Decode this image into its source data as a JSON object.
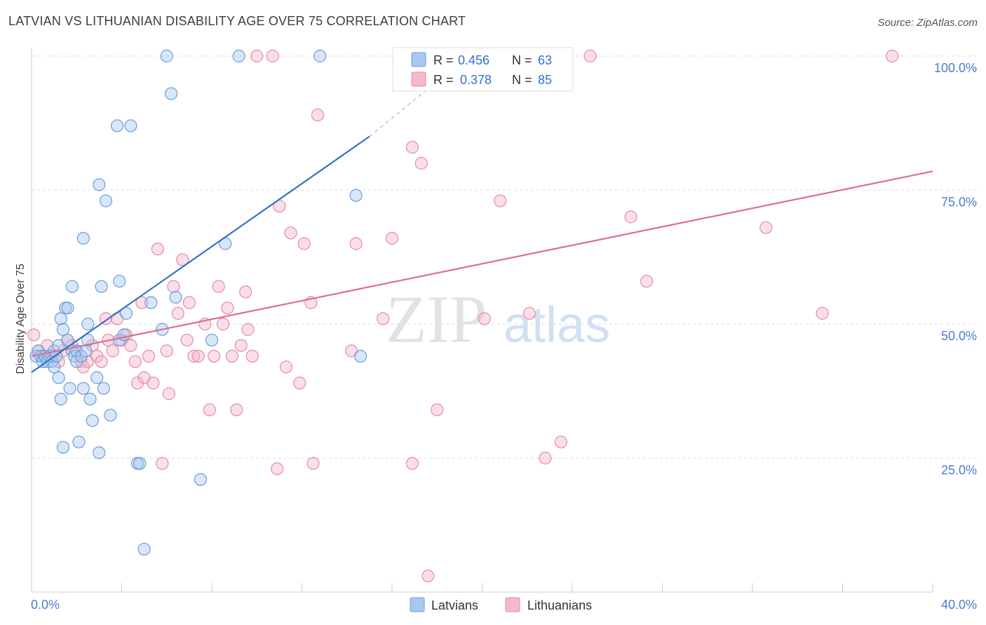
{
  "header": {
    "title": "LATVIAN VS LITHUANIAN DISABILITY AGE OVER 75 CORRELATION CHART",
    "source": "Source: ZipAtlas.com"
  },
  "watermark": {
    "zip": "ZIP",
    "atlas": "atlas"
  },
  "legend_stats": {
    "latvians": {
      "r_label": "R =",
      "r_value": "0.456",
      "n_label": "N =",
      "n_value": "63"
    },
    "lithuanians": {
      "r_label": "R =",
      "r_value": "0.378",
      "n_label": "N =",
      "n_value": "85"
    }
  },
  "colors": {
    "latvians_fill": "#a8c8f0",
    "latvians_stroke": "#6a9fd8",
    "latvians_line": "#2f72c8",
    "lithuanians_fill": "#f5b8cc",
    "lithuanians_stroke": "#e58aa8",
    "lithuanians_line": "#e06c98",
    "axis_text": "#4a7cc9",
    "grid": "#dddddd"
  },
  "chart_data": {
    "type": "scatter",
    "title": "LATVIAN VS LITHUANIAN DISABILITY AGE OVER 75 CORRELATION CHART",
    "xlabel": "",
    "ylabel": "Disability Age Over 75",
    "xlim": [
      0,
      40
    ],
    "ylim": [
      0,
      100
    ],
    "x_ticks": [
      "0.0%",
      "40.0%"
    ],
    "y_ticks": [
      "25.0%",
      "50.0%",
      "75.0%",
      "100.0%"
    ],
    "y_tick_values": [
      25,
      50,
      75,
      100
    ],
    "grid": true,
    "legend": [
      "Latvians",
      "Lithuanians"
    ],
    "legend_position": "bottom-center",
    "series": [
      {
        "name": "Latvians",
        "r": 0.456,
        "n": 63,
        "trend": {
          "x": [
            0,
            15
          ],
          "y": [
            41,
            85
          ],
          "dashed_to": [
            18.5,
            97
          ]
        },
        "points": [
          [
            0.2,
            44
          ],
          [
            0.3,
            45
          ],
          [
            0.4,
            44
          ],
          [
            0.5,
            43
          ],
          [
            0.6,
            44
          ],
          [
            0.7,
            43
          ],
          [
            0.8,
            44
          ],
          [
            0.9,
            43
          ],
          [
            1.0,
            45
          ],
          [
            1.0,
            42
          ],
          [
            1.1,
            44
          ],
          [
            1.2,
            46
          ],
          [
            1.2,
            40
          ],
          [
            1.3,
            51
          ],
          [
            1.3,
            36
          ],
          [
            1.4,
            27
          ],
          [
            1.4,
            49
          ],
          [
            1.5,
            53
          ],
          [
            1.6,
            47
          ],
          [
            1.6,
            53
          ],
          [
            1.7,
            38
          ],
          [
            1.8,
            45
          ],
          [
            1.8,
            57
          ],
          [
            1.9,
            44
          ],
          [
            2.0,
            45
          ],
          [
            2.0,
            43
          ],
          [
            2.1,
            28
          ],
          [
            2.2,
            44
          ],
          [
            2.3,
            38
          ],
          [
            2.3,
            66
          ],
          [
            2.4,
            45
          ],
          [
            2.5,
            47
          ],
          [
            2.5,
            50
          ],
          [
            2.6,
            36
          ],
          [
            2.7,
            32
          ],
          [
            2.9,
            40
          ],
          [
            3.0,
            76
          ],
          [
            3.0,
            26
          ],
          [
            3.1,
            57
          ],
          [
            3.2,
            38
          ],
          [
            3.3,
            73
          ],
          [
            3.5,
            33
          ],
          [
            3.8,
            87
          ],
          [
            3.9,
            47
          ],
          [
            3.9,
            58
          ],
          [
            4.1,
            48
          ],
          [
            4.2,
            52
          ],
          [
            4.4,
            87
          ],
          [
            4.7,
            24
          ],
          [
            4.8,
            24
          ],
          [
            5.0,
            8
          ],
          [
            5.3,
            54
          ],
          [
            5.8,
            49
          ],
          [
            6.0,
            100
          ],
          [
            6.2,
            93
          ],
          [
            6.4,
            55
          ],
          [
            7.5,
            21
          ],
          [
            8.0,
            47
          ],
          [
            8.6,
            65
          ],
          [
            9.2,
            100
          ],
          [
            12.8,
            100
          ],
          [
            14.4,
            74
          ],
          [
            14.6,
            44
          ]
        ]
      },
      {
        "name": "Lithuanians",
        "r": 0.378,
        "n": 85,
        "trend": {
          "x": [
            0,
            40
          ],
          "y": [
            44,
            78.5
          ]
        },
        "points": [
          [
            0.1,
            48
          ],
          [
            0.3,
            45
          ],
          [
            0.5,
            44
          ],
          [
            0.7,
            46
          ],
          [
            0.9,
            44
          ],
          [
            1.1,
            44
          ],
          [
            1.2,
            43
          ],
          [
            1.4,
            45
          ],
          [
            1.6,
            47
          ],
          [
            1.8,
            46
          ],
          [
            2.0,
            45
          ],
          [
            2.2,
            43
          ],
          [
            2.3,
            42
          ],
          [
            2.5,
            43
          ],
          [
            2.7,
            46
          ],
          [
            2.9,
            44
          ],
          [
            3.1,
            43
          ],
          [
            3.3,
            51
          ],
          [
            3.4,
            47
          ],
          [
            3.6,
            45
          ],
          [
            3.8,
            51
          ],
          [
            4.0,
            47
          ],
          [
            4.2,
            48
          ],
          [
            4.4,
            46
          ],
          [
            4.6,
            43
          ],
          [
            4.7,
            39
          ],
          [
            4.9,
            54
          ],
          [
            5.0,
            40
          ],
          [
            5.2,
            44
          ],
          [
            5.4,
            39
          ],
          [
            5.6,
            64
          ],
          [
            5.8,
            24
          ],
          [
            6.0,
            45
          ],
          [
            6.1,
            37
          ],
          [
            6.3,
            57
          ],
          [
            6.5,
            52
          ],
          [
            6.7,
            62
          ],
          [
            6.9,
            47
          ],
          [
            7.0,
            54
          ],
          [
            7.2,
            44
          ],
          [
            7.4,
            44
          ],
          [
            7.7,
            50
          ],
          [
            7.9,
            34
          ],
          [
            8.1,
            44
          ],
          [
            8.3,
            57
          ],
          [
            8.5,
            50
          ],
          [
            8.7,
            53
          ],
          [
            8.9,
            44
          ],
          [
            9.1,
            34
          ],
          [
            9.3,
            46
          ],
          [
            9.5,
            56
          ],
          [
            9.6,
            49
          ],
          [
            9.8,
            44
          ],
          [
            10.0,
            100
          ],
          [
            10.7,
            100
          ],
          [
            10.9,
            23
          ],
          [
            11.0,
            72
          ],
          [
            11.3,
            42
          ],
          [
            11.5,
            67
          ],
          [
            11.9,
            39
          ],
          [
            12.1,
            65
          ],
          [
            12.4,
            54
          ],
          [
            12.5,
            24
          ],
          [
            12.7,
            89
          ],
          [
            14.2,
            45
          ],
          [
            14.4,
            65
          ],
          [
            15.6,
            51
          ],
          [
            16.0,
            66
          ],
          [
            16.9,
            83
          ],
          [
            16.9,
            24
          ],
          [
            17.3,
            80
          ],
          [
            17.6,
            3
          ],
          [
            18.0,
            34
          ],
          [
            20.1,
            51
          ],
          [
            20.8,
            73
          ],
          [
            21.2,
            100
          ],
          [
            22.1,
            52
          ],
          [
            22.8,
            25
          ],
          [
            23.5,
            28
          ],
          [
            24.8,
            100
          ],
          [
            26.6,
            70
          ],
          [
            27.3,
            58
          ],
          [
            32.6,
            68
          ],
          [
            35.1,
            52
          ],
          [
            38.2,
            100
          ]
        ]
      }
    ]
  }
}
